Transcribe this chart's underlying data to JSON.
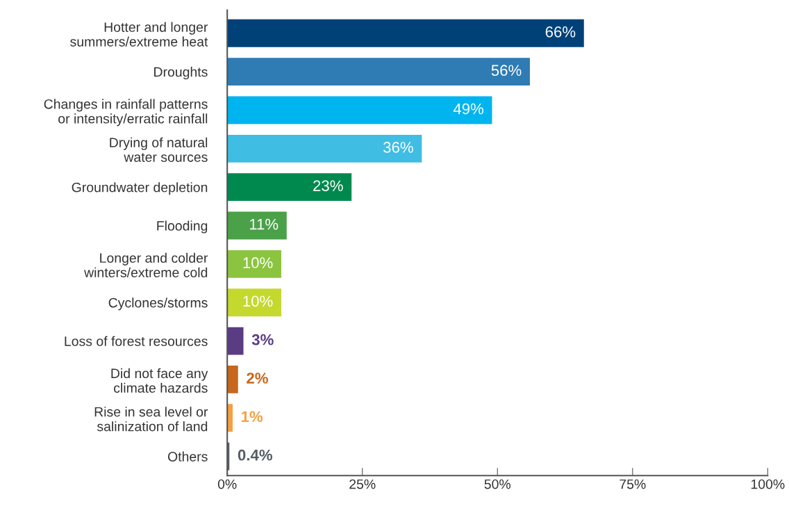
{
  "chart_data": {
    "type": "bar",
    "orientation": "horizontal",
    "categories": [
      "Hotter and longer\nsummers/extreme heat",
      "Droughts",
      "Changes in rainfall patterns\nor intensity/erratic rainfall",
      "Drying of natural\nwater sources",
      "Groundwater depletion",
      "Flooding",
      "Longer and colder\nwinters/extreme cold",
      "Cyclones/storms",
      "Loss of forest resources",
      "Did not face any\nclimate hazards",
      "Rise in sea level or\nsalinization of land",
      "Others"
    ],
    "values": [
      66,
      56,
      49,
      36,
      23,
      11,
      10,
      10,
      3,
      2,
      1,
      0.4
    ],
    "value_labels": [
      "66%",
      "56%",
      "49%",
      "36%",
      "23%",
      "11%",
      "10%",
      "10%",
      "3%",
      "2%",
      "1%",
      "0.4%"
    ],
    "colors": [
      "#004278",
      "#2f7bb3",
      "#00b4ef",
      "#3fbde3",
      "#00894f",
      "#4aa148",
      "#8bc43f",
      "#c5d82e",
      "#5a3c84",
      "#c7661c",
      "#f4a041",
      "#555c66"
    ],
    "xlim": [
      0,
      100
    ],
    "xticks": [
      {
        "value": 0,
        "label": "0%"
      },
      {
        "value": 25,
        "label": "25%"
      },
      {
        "value": 50,
        "label": "50%"
      },
      {
        "value": 75,
        "label": "75%"
      },
      {
        "value": 100,
        "label": "100%"
      }
    ],
    "grid": false,
    "legend": false
  }
}
